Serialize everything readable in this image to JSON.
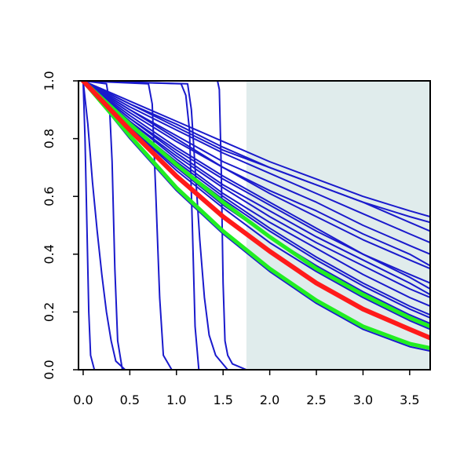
{
  "chart_data": {
    "type": "line",
    "title": "",
    "xlabel": "",
    "ylabel": "",
    "xlim": [
      -0.05,
      3.72
    ],
    "ylim": [
      0,
      1
    ],
    "x_ticks": [
      0.0,
      0.5,
      1.0,
      1.5,
      2.0,
      2.5,
      3.0,
      3.5
    ],
    "x_tick_labels": [
      "0.0",
      "0.5",
      "1.0",
      "1.5",
      "2.0",
      "2.5",
      "3.0",
      "3.5"
    ],
    "y_ticks": [
      0.0,
      0.2,
      0.4,
      0.6,
      0.8,
      1.0
    ],
    "y_tick_labels": [
      "0.0",
      "0.2",
      "0.4",
      "0.6",
      "0.8",
      "1.0"
    ],
    "grid": false,
    "legend": "none",
    "shaded_region": {
      "x_from": 1.75,
      "x_to": 3.72,
      "color": "#e0ecec"
    },
    "colors": {
      "blue": "#1a1acc",
      "red": "#ff1a1a",
      "green": "#22ee22",
      "axis": "#000000"
    },
    "series": [
      {
        "color": "blue",
        "width": 2,
        "points": [
          [
            0.0,
            1.0
          ],
          [
            0.02,
            0.8
          ],
          [
            0.04,
            0.5
          ],
          [
            0.06,
            0.2
          ],
          [
            0.08,
            0.05
          ],
          [
            0.12,
            0.0
          ],
          [
            3.72,
            0.0
          ]
        ]
      },
      {
        "color": "blue",
        "width": 2,
        "points": [
          [
            0.0,
            1.0
          ],
          [
            0.05,
            0.85
          ],
          [
            0.1,
            0.65
          ],
          [
            0.15,
            0.48
          ],
          [
            0.2,
            0.33
          ],
          [
            0.25,
            0.2
          ],
          [
            0.3,
            0.1
          ],
          [
            0.35,
            0.03
          ],
          [
            0.45,
            0.0
          ],
          [
            3.72,
            0.0
          ]
        ]
      },
      {
        "color": "blue",
        "width": 2,
        "points": [
          [
            0.0,
            1.0
          ],
          [
            0.25,
            0.99
          ],
          [
            0.28,
            0.93
          ],
          [
            0.31,
            0.72
          ],
          [
            0.34,
            0.35
          ],
          [
            0.37,
            0.1
          ],
          [
            0.42,
            0.0
          ],
          [
            3.72,
            0.0
          ]
        ]
      },
      {
        "color": "blue",
        "width": 2,
        "points": [
          [
            0.0,
            1.0
          ],
          [
            0.7,
            0.99
          ],
          [
            0.74,
            0.92
          ],
          [
            0.78,
            0.6
          ],
          [
            0.82,
            0.25
          ],
          [
            0.86,
            0.05
          ],
          [
            0.95,
            0.0
          ],
          [
            3.72,
            0.0
          ]
        ]
      },
      {
        "color": "blue",
        "width": 2,
        "points": [
          [
            0.0,
            1.0
          ],
          [
            1.05,
            0.99
          ],
          [
            1.1,
            0.95
          ],
          [
            1.14,
            0.83
          ],
          [
            1.17,
            0.5
          ],
          [
            1.2,
            0.15
          ],
          [
            1.24,
            0.0
          ],
          [
            3.72,
            0.0
          ]
        ]
      },
      {
        "color": "blue",
        "width": 2,
        "points": [
          [
            0.0,
            1.0
          ],
          [
            1.12,
            0.99
          ],
          [
            1.16,
            0.9
          ],
          [
            1.2,
            0.7
          ],
          [
            1.25,
            0.45
          ],
          [
            1.3,
            0.25
          ],
          [
            1.35,
            0.12
          ],
          [
            1.42,
            0.05
          ],
          [
            1.55,
            0.0
          ],
          [
            3.72,
            0.0
          ]
        ]
      },
      {
        "color": "blue",
        "width": 2,
        "points": [
          [
            0.0,
            1.0
          ],
          [
            1.44,
            1.0
          ],
          [
            1.46,
            0.97
          ],
          [
            1.48,
            0.7
          ],
          [
            1.5,
            0.3
          ],
          [
            1.52,
            0.1
          ],
          [
            1.55,
            0.05
          ],
          [
            1.6,
            0.02
          ],
          [
            1.75,
            0.0
          ],
          [
            3.72,
            0.0
          ]
        ]
      },
      {
        "color": "blue",
        "width": 2,
        "points": [
          [
            0.0,
            1.0
          ],
          [
            0.5,
            0.9
          ],
          [
            1.0,
            0.8
          ],
          [
            1.5,
            0.7
          ],
          [
            2.0,
            0.61
          ],
          [
            2.5,
            0.53
          ],
          [
            3.0,
            0.45
          ],
          [
            3.5,
            0.38
          ],
          [
            3.72,
            0.35
          ]
        ]
      },
      {
        "color": "blue",
        "width": 2,
        "points": [
          [
            0.0,
            1.0
          ],
          [
            0.5,
            0.88
          ],
          [
            1.0,
            0.77
          ],
          [
            1.5,
            0.67
          ],
          [
            2.0,
            0.58
          ],
          [
            2.5,
            0.49
          ],
          [
            3.0,
            0.4
          ],
          [
            3.5,
            0.32
          ],
          [
            3.72,
            0.28
          ]
        ]
      },
      {
        "color": "blue",
        "width": 2,
        "points": [
          [
            0.0,
            1.0
          ],
          [
            0.5,
            0.87
          ],
          [
            1.0,
            0.75
          ],
          [
            1.5,
            0.64
          ],
          [
            2.0,
            0.55
          ],
          [
            2.5,
            0.46
          ],
          [
            3.0,
            0.38
          ],
          [
            3.5,
            0.3
          ],
          [
            3.72,
            0.26
          ]
        ]
      },
      {
        "color": "blue",
        "width": 2,
        "points": [
          [
            0.0,
            1.0
          ],
          [
            0.5,
            0.9
          ],
          [
            1.0,
            0.81
          ],
          [
            1.5,
            0.72
          ],
          [
            2.0,
            0.65
          ],
          [
            2.5,
            0.58
          ],
          [
            3.0,
            0.5
          ],
          [
            3.5,
            0.43
          ],
          [
            3.72,
            0.4
          ]
        ]
      },
      {
        "color": "blue",
        "width": 2,
        "points": [
          [
            0.0,
            1.0
          ],
          [
            0.5,
            0.89
          ],
          [
            1.0,
            0.79
          ],
          [
            1.5,
            0.7
          ],
          [
            2.0,
            0.62
          ],
          [
            2.5,
            0.55
          ],
          [
            3.0,
            0.47
          ],
          [
            3.5,
            0.4
          ],
          [
            3.72,
            0.36
          ]
        ]
      },
      {
        "color": "blue",
        "width": 2,
        "points": [
          [
            0.0,
            1.0
          ],
          [
            0.5,
            0.92
          ],
          [
            1.0,
            0.84
          ],
          [
            1.5,
            0.76
          ],
          [
            2.0,
            0.7
          ],
          [
            2.5,
            0.64
          ],
          [
            3.0,
            0.58
          ],
          [
            3.5,
            0.51
          ],
          [
            3.72,
            0.48
          ]
        ]
      },
      {
        "color": "blue",
        "width": 2,
        "points": [
          [
            0.0,
            1.0
          ],
          [
            0.5,
            0.91
          ],
          [
            1.0,
            0.83
          ],
          [
            1.5,
            0.75
          ],
          [
            2.0,
            0.68
          ],
          [
            2.5,
            0.61
          ],
          [
            3.0,
            0.54
          ],
          [
            3.5,
            0.47
          ],
          [
            3.72,
            0.44
          ]
        ]
      },
      {
        "color": "blue",
        "width": 2,
        "points": [
          [
            0.0,
            1.0
          ],
          [
            0.5,
            0.92
          ],
          [
            1.0,
            0.85
          ],
          [
            1.5,
            0.77
          ],
          [
            2.0,
            0.7
          ],
          [
            2.5,
            0.64
          ],
          [
            3.0,
            0.58
          ],
          [
            3.5,
            0.53
          ],
          [
            3.72,
            0.51
          ]
        ]
      },
      {
        "color": "blue",
        "width": 2,
        "points": [
          [
            0.0,
            1.0
          ],
          [
            0.5,
            0.93
          ],
          [
            1.0,
            0.86
          ],
          [
            1.5,
            0.79
          ],
          [
            2.0,
            0.72
          ],
          [
            2.5,
            0.66
          ],
          [
            3.0,
            0.6
          ],
          [
            3.5,
            0.55
          ],
          [
            3.72,
            0.53
          ]
        ]
      },
      {
        "color": "blue",
        "width": 2,
        "points": [
          [
            0.0,
            1.0
          ],
          [
            0.5,
            0.86
          ],
          [
            1.0,
            0.73
          ],
          [
            1.5,
            0.61
          ],
          [
            2.0,
            0.51
          ],
          [
            2.5,
            0.42
          ],
          [
            3.0,
            0.33
          ],
          [
            3.5,
            0.25
          ],
          [
            3.72,
            0.22
          ]
        ]
      },
      {
        "color": "blue",
        "width": 2,
        "points": [
          [
            0.0,
            1.0
          ],
          [
            0.5,
            0.85
          ],
          [
            1.0,
            0.72
          ],
          [
            1.5,
            0.6
          ],
          [
            2.0,
            0.49
          ],
          [
            2.5,
            0.39
          ],
          [
            3.0,
            0.3
          ],
          [
            3.5,
            0.22
          ],
          [
            3.72,
            0.19
          ]
        ]
      },
      {
        "color": "blue",
        "width": 2,
        "points": [
          [
            0.0,
            1.0
          ],
          [
            0.5,
            0.86
          ],
          [
            1.0,
            0.74
          ],
          [
            1.5,
            0.63
          ],
          [
            2.0,
            0.53
          ],
          [
            2.5,
            0.44
          ],
          [
            3.0,
            0.36
          ],
          [
            3.5,
            0.28
          ],
          [
            3.72,
            0.25
          ]
        ]
      },
      {
        "color": "blue",
        "width": 2,
        "points": [
          [
            0.0,
            1.0
          ],
          [
            0.5,
            0.87
          ],
          [
            1.0,
            0.76
          ],
          [
            1.5,
            0.66
          ],
          [
            2.0,
            0.57
          ],
          [
            2.5,
            0.48
          ],
          [
            3.0,
            0.4
          ],
          [
            3.5,
            0.33
          ],
          [
            3.72,
            0.3
          ]
        ]
      },
      {
        "color": "blue",
        "width": 2,
        "points": [
          [
            0.0,
            1.0
          ],
          [
            0.5,
            0.84
          ],
          [
            1.0,
            0.7
          ],
          [
            1.5,
            0.57
          ],
          [
            2.0,
            0.46
          ],
          [
            2.5,
            0.36
          ],
          [
            3.0,
            0.27
          ],
          [
            3.5,
            0.19
          ],
          [
            3.72,
            0.16
          ]
        ]
      },
      {
        "color": "blue",
        "width": 2,
        "points": [
          [
            0.0,
            1.0
          ],
          [
            0.5,
            0.85
          ],
          [
            1.0,
            0.71
          ],
          [
            1.5,
            0.59
          ],
          [
            2.0,
            0.48
          ],
          [
            2.5,
            0.38
          ],
          [
            3.0,
            0.29
          ],
          [
            3.5,
            0.21
          ],
          [
            3.72,
            0.18
          ]
        ]
      },
      {
        "color": "blue",
        "width": 2,
        "points": [
          [
            0.0,
            1.0
          ],
          [
            0.5,
            0.84
          ],
          [
            1.0,
            0.69
          ],
          [
            1.5,
            0.56
          ],
          [
            2.0,
            0.44
          ],
          [
            2.5,
            0.34
          ],
          [
            3.0,
            0.25
          ],
          [
            3.5,
            0.17
          ],
          [
            3.72,
            0.14
          ]
        ]
      },
      {
        "color": "blue",
        "width": 2,
        "points": [
          [
            0.0,
            1.0
          ],
          [
            0.5,
            0.8
          ],
          [
            1.0,
            0.62
          ],
          [
            1.5,
            0.47
          ],
          [
            2.0,
            0.34
          ],
          [
            2.5,
            0.23
          ],
          [
            3.0,
            0.14
          ],
          [
            3.5,
            0.08
          ],
          [
            3.72,
            0.065
          ]
        ]
      },
      {
        "color": "green",
        "width": 5,
        "points": [
          [
            0.0,
            1.0
          ],
          [
            0.5,
            0.81
          ],
          [
            1.0,
            0.63
          ],
          [
            1.5,
            0.48
          ],
          [
            2.0,
            0.35
          ],
          [
            2.5,
            0.24
          ],
          [
            3.0,
            0.15
          ],
          [
            3.5,
            0.09
          ],
          [
            3.72,
            0.075
          ]
        ]
      },
      {
        "color": "green",
        "width": 5,
        "points": [
          [
            0.0,
            1.0
          ],
          [
            0.5,
            0.85
          ],
          [
            1.0,
            0.71
          ],
          [
            1.5,
            0.58
          ],
          [
            2.0,
            0.46
          ],
          [
            2.5,
            0.35
          ],
          [
            3.0,
            0.26
          ],
          [
            3.5,
            0.18
          ],
          [
            3.72,
            0.15
          ]
        ]
      },
      {
        "color": "red",
        "width": 6,
        "points": [
          [
            0.0,
            1.0
          ],
          [
            0.5,
            0.83
          ],
          [
            1.0,
            0.67
          ],
          [
            1.5,
            0.53
          ],
          [
            2.0,
            0.41
          ],
          [
            2.5,
            0.3
          ],
          [
            3.0,
            0.21
          ],
          [
            3.5,
            0.14
          ],
          [
            3.72,
            0.11
          ]
        ]
      }
    ]
  }
}
